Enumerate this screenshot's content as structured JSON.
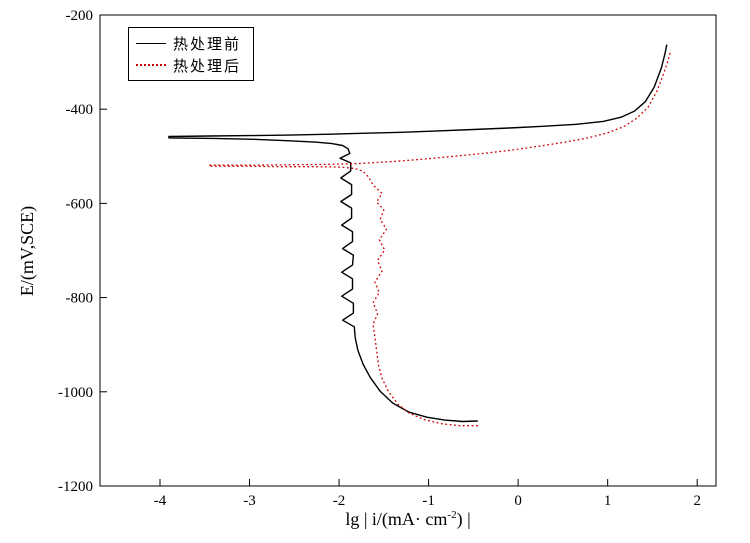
{
  "chart_data": {
    "type": "line",
    "title": "",
    "xlabel": {
      "prefix": "lg | i/(mA· cm",
      "sup": "-2",
      "suffix": ") |"
    },
    "ylabel": "E/(mV,SCE)",
    "xlim": [
      -4.67,
      2.21
    ],
    "ylim": [
      -1200,
      -200
    ],
    "xticks": [
      -4,
      -3,
      -2,
      -1,
      0,
      1,
      2
    ],
    "yticks": [
      -1200,
      -1000,
      -800,
      -600,
      -400,
      -200
    ],
    "grid": false,
    "legend_position": "top-left",
    "series": [
      {
        "name": "热处理前",
        "color": "#000000",
        "style": "solid",
        "points": [
          [
            -0.45,
            -1062
          ],
          [
            -0.62,
            -1063
          ],
          [
            -0.82,
            -1060
          ],
          [
            -1.02,
            -1054
          ],
          [
            -1.22,
            -1043
          ],
          [
            -1.4,
            -1024
          ],
          [
            -1.54,
            -999
          ],
          [
            -1.65,
            -970
          ],
          [
            -1.73,
            -942
          ],
          [
            -1.79,
            -912
          ],
          [
            -1.82,
            -885
          ],
          [
            -1.83,
            -862
          ],
          [
            -1.96,
            -848
          ],
          [
            -1.84,
            -833
          ],
          [
            -1.84,
            -812
          ],
          [
            -1.97,
            -797
          ],
          [
            -1.85,
            -782
          ],
          [
            -1.85,
            -760
          ],
          [
            -1.97,
            -746
          ],
          [
            -1.85,
            -731
          ],
          [
            -1.84,
            -710
          ],
          [
            -1.96,
            -696
          ],
          [
            -1.85,
            -681
          ],
          [
            -1.85,
            -660
          ],
          [
            -1.97,
            -646
          ],
          [
            -1.86,
            -631
          ],
          [
            -1.86,
            -610
          ],
          [
            -1.98,
            -596
          ],
          [
            -1.86,
            -581
          ],
          [
            -1.86,
            -560
          ],
          [
            -1.98,
            -546
          ],
          [
            -1.87,
            -531
          ],
          [
            -1.87,
            -514
          ],
          [
            -1.99,
            -504
          ],
          [
            -1.88,
            -494
          ],
          [
            -1.9,
            -484
          ],
          [
            -1.96,
            -477
          ],
          [
            -2.08,
            -473
          ],
          [
            -2.25,
            -470
          ],
          [
            -2.55,
            -467
          ],
          [
            -2.95,
            -464
          ],
          [
            -3.4,
            -462
          ],
          [
            -3.9,
            -461
          ],
          [
            -3.9,
            -458
          ],
          [
            -3.45,
            -457
          ],
          [
            -3.0,
            -456
          ],
          [
            -2.55,
            -455
          ],
          [
            -2.1,
            -453
          ],
          [
            -1.7,
            -451
          ],
          [
            -1.3,
            -449
          ],
          [
            -0.9,
            -446
          ],
          [
            -0.5,
            -443
          ],
          [
            -0.1,
            -440
          ],
          [
            0.3,
            -436
          ],
          [
            0.65,
            -432
          ],
          [
            0.95,
            -426
          ],
          [
            1.15,
            -417
          ],
          [
            1.3,
            -404
          ],
          [
            1.42,
            -384
          ],
          [
            1.52,
            -353
          ],
          [
            1.6,
            -312
          ],
          [
            1.64,
            -282
          ],
          [
            1.66,
            -263
          ]
        ]
      },
      {
        "name": "热处理后",
        "color": "#cc0000",
        "style": "dotted",
        "points": [
          [
            -0.45,
            -1072
          ],
          [
            -0.65,
            -1072
          ],
          [
            -0.85,
            -1068
          ],
          [
            -1.05,
            -1059
          ],
          [
            -1.22,
            -1045
          ],
          [
            -1.35,
            -1025
          ],
          [
            -1.45,
            -999
          ],
          [
            -1.52,
            -971
          ],
          [
            -1.56,
            -943
          ],
          [
            -1.58,
            -914
          ],
          [
            -1.6,
            -884
          ],
          [
            -1.62,
            -857
          ],
          [
            -1.57,
            -834
          ],
          [
            -1.62,
            -811
          ],
          [
            -1.55,
            -789
          ],
          [
            -1.6,
            -767
          ],
          [
            -1.52,
            -744
          ],
          [
            -1.57,
            -721
          ],
          [
            -1.49,
            -699
          ],
          [
            -1.55,
            -677
          ],
          [
            -1.47,
            -655
          ],
          [
            -1.54,
            -634
          ],
          [
            -1.5,
            -614
          ],
          [
            -1.58,
            -597
          ],
          [
            -1.52,
            -579
          ],
          [
            -1.62,
            -561
          ],
          [
            -1.67,
            -544
          ],
          [
            -1.73,
            -532
          ],
          [
            -1.82,
            -526
          ],
          [
            -1.98,
            -523
          ],
          [
            -2.25,
            -522
          ],
          [
            -2.65,
            -522
          ],
          [
            -3.05,
            -521
          ],
          [
            -3.45,
            -521
          ],
          [
            -3.45,
            -519
          ],
          [
            -3.0,
            -519
          ],
          [
            -2.55,
            -518
          ],
          [
            -2.1,
            -517
          ],
          [
            -1.75,
            -515
          ],
          [
            -1.4,
            -511
          ],
          [
            -1.05,
            -506
          ],
          [
            -0.72,
            -500
          ],
          [
            -0.4,
            -494
          ],
          [
            -0.08,
            -487
          ],
          [
            0.22,
            -479
          ],
          [
            0.52,
            -470
          ],
          [
            0.78,
            -461
          ],
          [
            1.0,
            -450
          ],
          [
            1.18,
            -437
          ],
          [
            1.32,
            -420
          ],
          [
            1.45,
            -396
          ],
          [
            1.55,
            -362
          ],
          [
            1.63,
            -322
          ],
          [
            1.68,
            -294
          ],
          [
            1.7,
            -278
          ]
        ]
      }
    ]
  }
}
